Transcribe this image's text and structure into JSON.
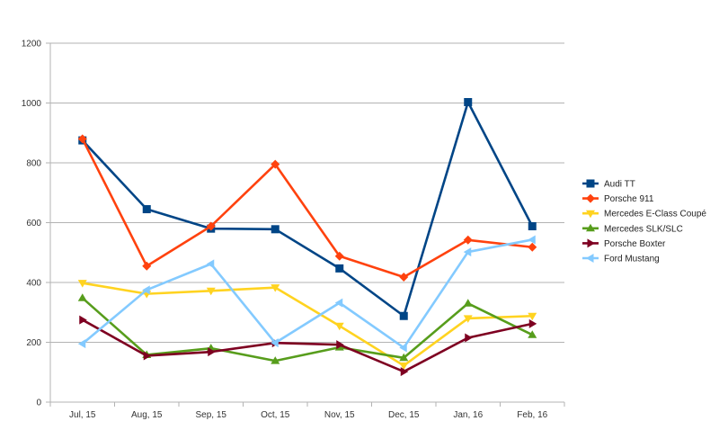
{
  "chart_data": {
    "type": "line",
    "title": "",
    "xlabel": "",
    "ylabel": "",
    "categories": [
      "Jul, 15",
      "Aug, 15",
      "Sep, 15",
      "Oct, 15",
      "Nov, 15",
      "Dec, 15",
      "Jan, 16",
      "Feb, 16"
    ],
    "ylim": [
      0,
      1200
    ],
    "yticks": [
      0,
      200,
      400,
      600,
      800,
      1000,
      1200
    ],
    "grid": "horizontal",
    "legend_position": "right",
    "series": [
      {
        "name": "Audi TT",
        "color": "#004586",
        "marker": "square",
        "values": [
          875,
          645,
          580,
          578,
          447,
          288,
          1003,
          588
        ]
      },
      {
        "name": "Porsche 911",
        "color": "#ff420e",
        "marker": "diamond",
        "values": [
          880,
          455,
          588,
          795,
          488,
          418,
          542,
          518
        ]
      },
      {
        "name": "Mercedes E-Class Coupé",
        "color": "#ffd320",
        "marker": "triangle-down",
        "values": [
          398,
          362,
          372,
          383,
          255,
          122,
          280,
          288
        ]
      },
      {
        "name": "Mercedes SLK/SLC",
        "color": "#579d1c",
        "marker": "triangle-up",
        "values": [
          348,
          158,
          180,
          138,
          183,
          148,
          330,
          225
        ]
      },
      {
        "name": "Porsche Boxter",
        "color": "#7e0021",
        "marker": "triangle-right",
        "values": [
          275,
          155,
          168,
          198,
          192,
          102,
          215,
          262
        ]
      },
      {
        "name": "Ford Mustang",
        "color": "#83caff",
        "marker": "triangle-left",
        "values": [
          195,
          375,
          462,
          198,
          332,
          182,
          502,
          543
        ]
      }
    ]
  }
}
